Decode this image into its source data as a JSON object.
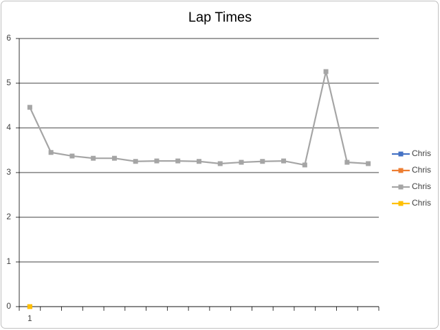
{
  "chart_data": {
    "type": "line",
    "title": "Lap Times",
    "categories": [
      "1",
      null,
      null,
      null,
      null,
      null,
      null,
      null,
      null,
      null,
      null,
      null,
      null,
      null,
      null,
      null,
      null
    ],
    "series": [
      {
        "name": "Chris",
        "color": "#4472c4",
        "values": [
          0,
          null,
          null,
          null,
          null,
          null,
          null,
          null,
          null,
          null,
          null,
          null,
          null,
          null,
          null,
          null,
          null
        ]
      },
      {
        "name": "Chris",
        "color": "#ed7d31",
        "values": [
          0,
          null,
          null,
          null,
          null,
          null,
          null,
          null,
          null,
          null,
          null,
          null,
          null,
          null,
          null,
          null,
          null
        ]
      },
      {
        "name": "Chris",
        "color": "#a5a5a5",
        "values": [
          4.46,
          3.45,
          3.37,
          3.32,
          3.32,
          3.25,
          3.26,
          3.26,
          3.25,
          3.2,
          3.23,
          3.25,
          3.26,
          3.17,
          5.26,
          3.23,
          3.2
        ]
      },
      {
        "name": "Chris",
        "color": "#ffc000",
        "values": [
          0,
          null,
          null,
          null,
          null,
          null,
          null,
          null,
          null,
          null,
          null,
          null,
          null,
          null,
          null,
          null,
          null
        ]
      }
    ],
    "ylim": [
      0,
      6
    ],
    "yticks": [
      0,
      1,
      2,
      3,
      4,
      5,
      6
    ],
    "grid": true,
    "legend": "right"
  }
}
